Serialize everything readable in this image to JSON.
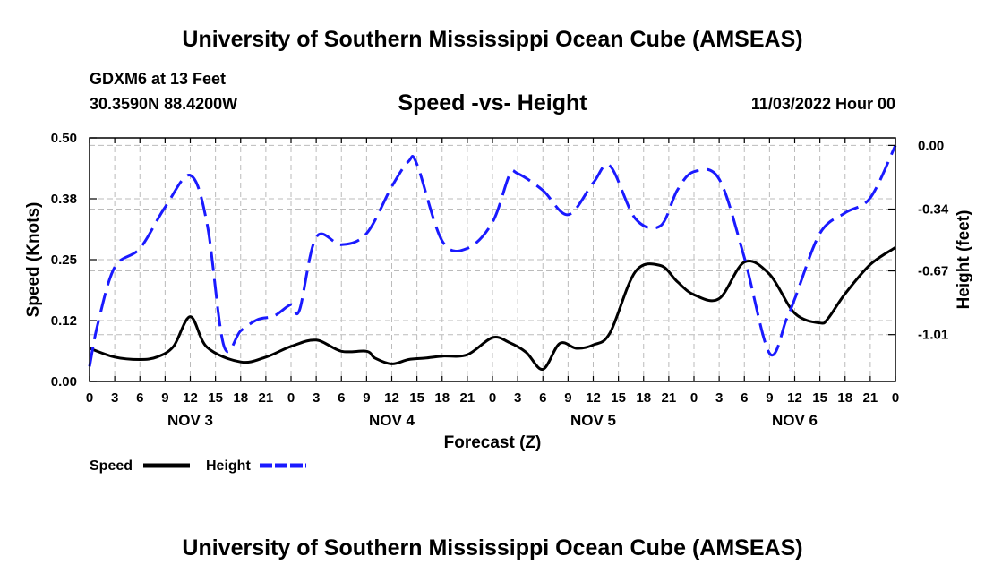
{
  "header": {
    "title": "University of Southern Mississippi Ocean Cube (AMSEAS)",
    "station": "GDXM6 at 13 Feet",
    "coords": "30.3590N  88.4200W",
    "subtitle": "Speed -vs- Height",
    "datetime": "11/03/2022 Hour 00"
  },
  "footer": {
    "title": "University of Southern Mississippi Ocean Cube (AMSEAS)"
  },
  "chart_data": {
    "type": "line",
    "xlabel": "Forecast (Z)",
    "ylabel_left": "Speed (Knots)",
    "ylabel_right": "Height (feet)",
    "x_range_hours": [
      0,
      96
    ],
    "x_ticks": [
      "0",
      "3",
      "6",
      "9",
      "12",
      "15",
      "18",
      "21",
      "0",
      "3",
      "6",
      "9",
      "12",
      "15",
      "18",
      "21",
      "0",
      "3",
      "6",
      "9",
      "12",
      "15",
      "18",
      "21",
      "0",
      "3",
      "6",
      "9",
      "12",
      "15",
      "18",
      "21",
      "0"
    ],
    "day_labels": [
      "NOV 3",
      "NOV 4",
      "NOV 5",
      "NOV 6"
    ],
    "y_left_ticks": [
      "0.50",
      "0.38",
      "0.25",
      "0.12",
      "0.00"
    ],
    "y_left_range": [
      0,
      0.5
    ],
    "y_right_ticks": [
      "0.00",
      "-0.34",
      "-0.67",
      "-1.01"
    ],
    "y_right_range": [
      -1.26,
      0.04
    ],
    "grid": true,
    "legend": [
      {
        "name": "Speed",
        "color": "#000000",
        "style": "solid"
      },
      {
        "name": "Height",
        "color": "#1a1aff",
        "style": "dashed"
      }
    ],
    "series": [
      {
        "name": "Speed",
        "axis": "left",
        "color": "#000000",
        "x": [
          0,
          3,
          6,
          8,
          10,
          12,
          14,
          18,
          21,
          24,
          27,
          30,
          33,
          34,
          36,
          38,
          40,
          42,
          45,
          48,
          50,
          52,
          54,
          56,
          58,
          60,
          62,
          65,
          68,
          70,
          72,
          75,
          78,
          81,
          84,
          87,
          88,
          90,
          93,
          96
        ],
        "y": [
          0.068,
          0.05,
          0.045,
          0.05,
          0.072,
          0.133,
          0.07,
          0.04,
          0.05,
          0.072,
          0.085,
          0.062,
          0.062,
          0.048,
          0.036,
          0.045,
          0.048,
          0.052,
          0.055,
          0.09,
          0.08,
          0.06,
          0.025,
          0.078,
          0.068,
          0.075,
          0.1,
          0.225,
          0.238,
          0.205,
          0.178,
          0.17,
          0.245,
          0.22,
          0.14,
          0.12,
          0.13,
          0.18,
          0.24,
          0.275
        ]
      },
      {
        "name": "Height",
        "axis": "right",
        "color": "#1a1aff",
        "x": [
          0,
          1,
          3,
          6,
          9,
          12,
          14,
          16,
          18,
          20,
          22,
          24,
          25,
          27,
          30,
          33,
          36,
          38,
          39,
          42,
          45,
          48,
          50,
          51,
          54,
          57,
          60,
          62,
          65,
          68,
          70,
          72,
          75,
          78,
          81,
          83,
          84,
          87,
          90,
          93,
          96
        ],
        "y": [
          -1.18,
          -0.95,
          -0.65,
          -0.55,
          -0.33,
          -0.16,
          -0.42,
          -1.07,
          -0.99,
          -0.93,
          -0.91,
          -0.85,
          -0.88,
          -0.49,
          -0.53,
          -0.47,
          -0.22,
          -0.085,
          -0.1,
          -0.51,
          -0.55,
          -0.41,
          -0.16,
          -0.15,
          -0.24,
          -0.37,
          -0.2,
          -0.11,
          -0.39,
          -0.43,
          -0.24,
          -0.14,
          -0.18,
          -0.6,
          -1.11,
          -0.93,
          -0.82,
          -0.47,
          -0.36,
          -0.28,
          0.0
        ]
      }
    ]
  }
}
